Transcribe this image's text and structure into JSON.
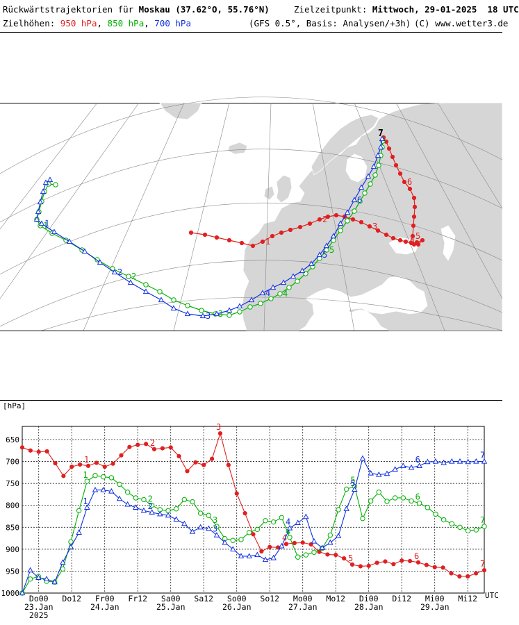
{
  "header": {
    "line1_left_prefix": "Rückwärtstrajektorien für ",
    "line1_left_place": "Moskau (37.62°O, 55.76°N)",
    "line1_right_prefix": "Zielzeitpunkt: ",
    "line1_right_time": "Mittwoch, 29-01-2025",
    "line1_right_utc": "18 UTC",
    "line2_prefix": "Zielhöhen: ",
    "level_950": "950 hPa",
    "level_850": "850 hPa",
    "level_700": "700 hPa",
    "sep1": ", ",
    "sep2": ", ",
    "line2_model": "(GFS 0.5°, Basis: Analysen/+3h)",
    "line2_copyright": "(C) www.wetter3.de"
  },
  "colors": {
    "red": "#e02020",
    "green": "#00b000",
    "blue": "#1030e0"
  },
  "map": {
    "target_label": "7",
    "trajectories": [
      {
        "level": "950 hPa",
        "color": "#e02020",
        "marker": "filled-circle",
        "labels": [
          "1",
          "2",
          "3",
          "4",
          "5",
          "6"
        ]
      },
      {
        "level": "850 hPa",
        "color": "#00b000",
        "marker": "open-circle",
        "labels": [
          "1",
          "2",
          "3",
          "4",
          "5"
        ]
      },
      {
        "level": "700 hPa",
        "color": "#1030e0",
        "marker": "open-triangle",
        "labels": [
          "1",
          "2",
          "3",
          "4",
          "5",
          "6"
        ]
      }
    ]
  },
  "chart_data": {
    "type": "line",
    "title": "",
    "ylabel": "[hPa]",
    "xlabel": "UTC",
    "ylim": [
      1000,
      620
    ],
    "y_ticks": [
      650,
      700,
      750,
      800,
      850,
      900,
      950,
      1000
    ],
    "x_ticks": [
      {
        "t": 6,
        "top": "Do00",
        "mid": "23.Jan",
        "bot": "2025"
      },
      {
        "t": 18,
        "top": "Do12",
        "mid": "",
        "bot": ""
      },
      {
        "t": 30,
        "top": "Fr00",
        "mid": "24.Jan",
        "bot": ""
      },
      {
        "t": 42,
        "top": "Fr12",
        "mid": "",
        "bot": ""
      },
      {
        "t": 54,
        "top": "Sa00",
        "mid": "25.Jan",
        "bot": ""
      },
      {
        "t": 66,
        "top": "Sa12",
        "mid": "",
        "bot": ""
      },
      {
        "t": 78,
        "top": "So00",
        "mid": "26.Jan",
        "bot": ""
      },
      {
        "t": 90,
        "top": "So12",
        "mid": "",
        "bot": ""
      },
      {
        "t": 102,
        "top": "Mo00",
        "mid": "27.Jan",
        "bot": ""
      },
      {
        "t": 114,
        "top": "Mo12",
        "mid": "",
        "bot": ""
      },
      {
        "t": 126,
        "top": "Di00",
        "mid": "28.Jan",
        "bot": ""
      },
      {
        "t": 138,
        "top": "Di12",
        "mid": "",
        "bot": ""
      },
      {
        "t": 150,
        "top": "Mi00",
        "mid": "29.Jan",
        "bot": ""
      },
      {
        "t": 162,
        "top": "Mi12",
        "mid": "",
        "bot": ""
      }
    ],
    "x_range": [
      0,
      168
    ],
    "series": [
      {
        "name": "950 hPa",
        "color": "#e02020",
        "marker": "filled-circle",
        "labels": [
          {
            "t": 24,
            "text": "1"
          },
          {
            "t": 48,
            "text": "2"
          },
          {
            "t": 72,
            "text": "3"
          },
          {
            "t": 96,
            "text": "4"
          },
          {
            "t": 120,
            "text": "5"
          },
          {
            "t": 144,
            "text": "6"
          },
          {
            "t": 168,
            "text": "7"
          }
        ],
        "values": [
          668,
          675,
          678,
          677,
          704,
          733,
          712,
          707,
          710,
          703,
          712,
          705,
          686,
          667,
          662,
          660,
          672,
          670,
          668,
          688,
          722,
          702,
          708,
          694,
          636,
          708,
          773,
          818,
          866,
          905,
          895,
          896,
          888,
          886,
          885,
          889,
          906,
          912,
          913,
          921,
          935,
          939,
          938,
          931,
          928,
          934,
          926,
          927,
          930,
          936,
          941,
          942,
          955,
          962,
          962,
          955,
          948
        ]
      },
      {
        "name": "850 hPa",
        "color": "#00b000",
        "marker": "open-circle",
        "labels": [
          {
            "t": 24,
            "text": "1"
          },
          {
            "t": 48,
            "text": "2"
          },
          {
            "t": 72,
            "text": "3"
          },
          {
            "t": 96,
            "text": "4"
          },
          {
            "t": 120,
            "text": "5"
          },
          {
            "t": 144,
            "text": "6"
          },
          {
            "t": 168,
            "text": "7"
          }
        ],
        "values": [
          1000,
          968,
          962,
          973,
          975,
          945,
          883,
          812,
          745,
          732,
          735,
          737,
          752,
          770,
          783,
          787,
          800,
          810,
          812,
          808,
          787,
          792,
          818,
          823,
          848,
          876,
          880,
          878,
          862,
          855,
          835,
          838,
          828,
          873,
          918,
          913,
          907,
          898,
          868,
          810,
          763,
          757,
          830,
          790,
          770,
          791,
          783,
          783,
          790,
          795,
          805,
          820,
          833,
          842,
          850,
          858,
          856,
          848
        ]
      },
      {
        "name": "700 hPa",
        "color": "#1030e0",
        "marker": "open-triangle",
        "labels": [
          {
            "t": 24,
            "text": "1"
          },
          {
            "t": 48,
            "text": "2"
          },
          {
            "t": 72,
            "text": "3"
          },
          {
            "t": 96,
            "text": "4"
          },
          {
            "t": 120,
            "text": "5"
          },
          {
            "t": 144,
            "text": "6"
          },
          {
            "t": 168,
            "text": "7"
          }
        ],
        "values": [
          1000,
          948,
          965,
          968,
          975,
          930,
          895,
          862,
          805,
          765,
          765,
          768,
          785,
          798,
          805,
          812,
          816,
          820,
          823,
          832,
          842,
          860,
          850,
          853,
          868,
          885,
          900,
          916,
          916,
          913,
          924,
          920,
          893,
          852,
          840,
          826,
          882,
          897,
          885,
          870,
          808,
          764,
          693,
          727,
          730,
          728,
          718,
          710,
          714,
          710,
          701,
          700,
          703,
          700,
          700,
          701,
          700,
          700
        ]
      }
    ]
  }
}
